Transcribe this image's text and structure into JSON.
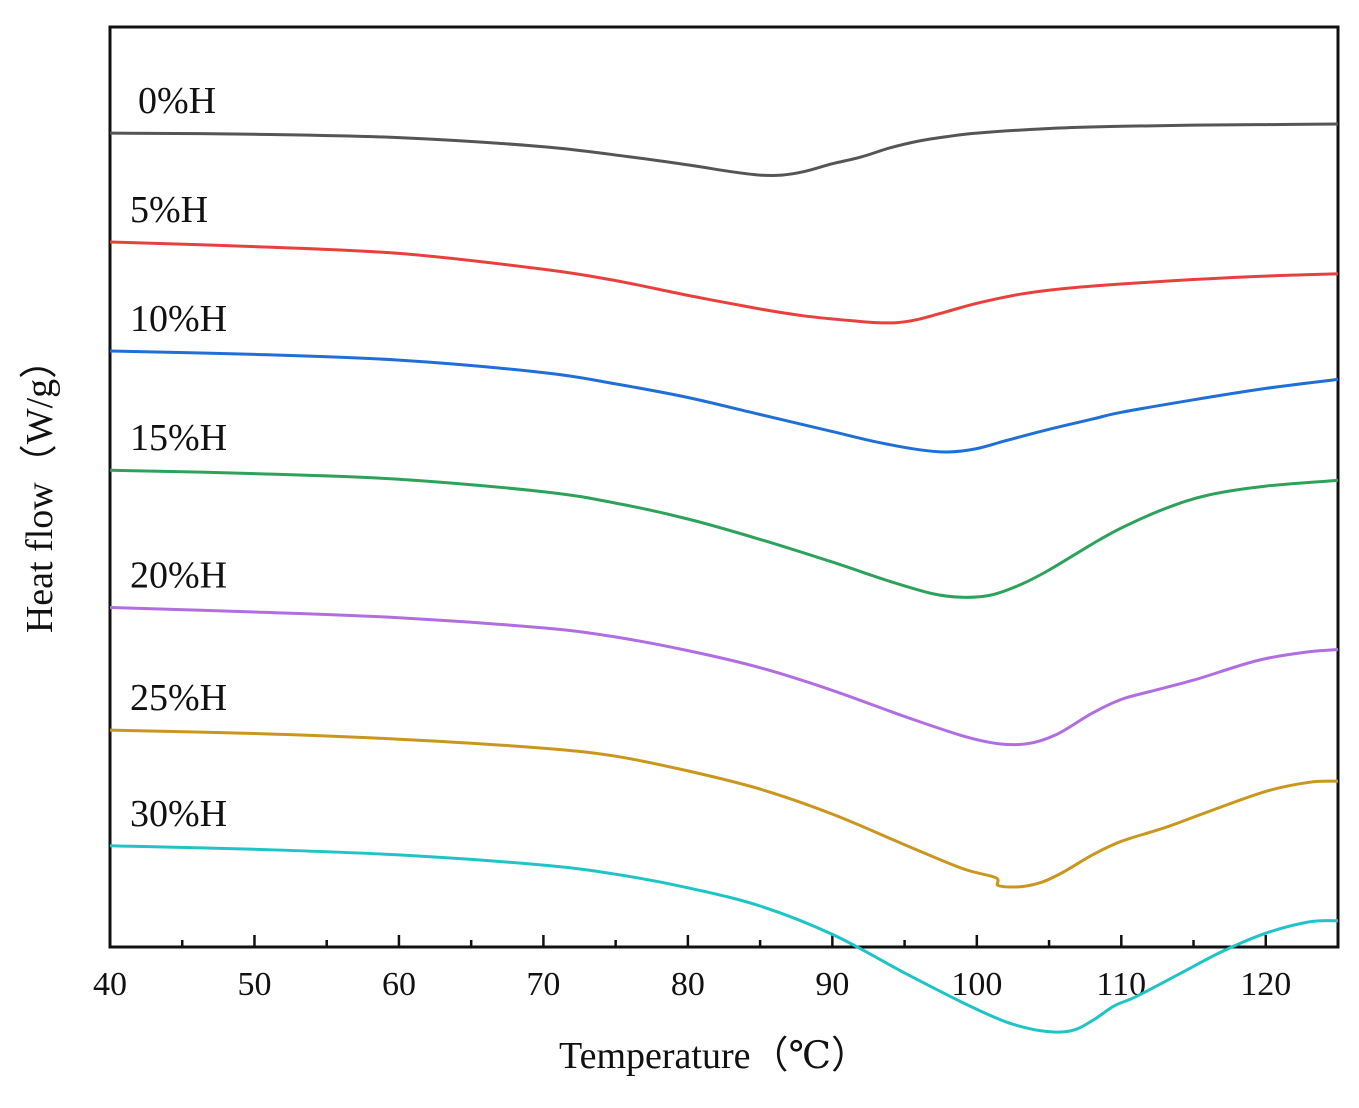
{
  "chart_data": {
    "type": "line",
    "xlabel": "Temperature（℃）",
    "ylabel": "Heat flow（W/g）",
    "xlim": [
      40,
      125
    ],
    "x_ticks": [
      40,
      50,
      60,
      70,
      80,
      90,
      100,
      110,
      120
    ],
    "y_ticks": [],
    "grid": false,
    "y_units": "relative (curves vertically offset, no y tick labels)",
    "series": [
      {
        "name": "0%H",
        "color": "#555555",
        "points": [
          [
            40,
            0.82
          ],
          [
            50,
            0.83
          ],
          [
            60,
            0.86
          ],
          [
            70,
            0.94
          ],
          [
            76,
            1.03
          ],
          [
            80,
            1.1
          ],
          [
            83,
            1.16
          ],
          [
            85,
            1.19
          ],
          [
            86.5,
            1.19
          ],
          [
            88,
            1.16
          ],
          [
            90,
            1.09
          ],
          [
            92,
            1.03
          ],
          [
            94,
            0.95
          ],
          [
            96,
            0.89
          ],
          [
            98,
            0.85
          ],
          [
            100,
            0.82
          ],
          [
            105,
            0.78
          ],
          [
            110,
            0.76
          ],
          [
            115,
            0.75
          ],
          [
            120,
            0.745
          ],
          [
            125,
            0.74
          ]
        ]
      },
      {
        "name": "5%H",
        "color": "#e8413d",
        "points": [
          [
            40,
            1.78
          ],
          [
            50,
            1.82
          ],
          [
            60,
            1.88
          ],
          [
            70,
            2.02
          ],
          [
            75,
            2.12
          ],
          [
            80,
            2.25
          ],
          [
            85,
            2.37
          ],
          [
            88,
            2.43
          ],
          [
            91,
            2.47
          ],
          [
            93,
            2.49
          ],
          [
            94.5,
            2.49
          ],
          [
            96,
            2.46
          ],
          [
            98,
            2.39
          ],
          [
            100,
            2.32
          ],
          [
            103,
            2.24
          ],
          [
            106,
            2.19
          ],
          [
            110,
            2.15
          ],
          [
            115,
            2.11
          ],
          [
            120,
            2.08
          ],
          [
            125,
            2.06
          ]
        ]
      },
      {
        "name": "10%H",
        "color": "#1f6fd6",
        "points": [
          [
            40,
            2.74
          ],
          [
            50,
            2.77
          ],
          [
            60,
            2.82
          ],
          [
            70,
            2.93
          ],
          [
            75,
            3.03
          ],
          [
            80,
            3.15
          ],
          [
            85,
            3.3
          ],
          [
            90,
            3.45
          ],
          [
            93,
            3.54
          ],
          [
            96,
            3.61
          ],
          [
            98,
            3.63
          ],
          [
            100,
            3.6
          ],
          [
            102,
            3.53
          ],
          [
            105,
            3.43
          ],
          [
            108,
            3.34
          ],
          [
            110,
            3.28
          ],
          [
            115,
            3.17
          ],
          [
            120,
            3.07
          ],
          [
            125,
            2.99
          ]
        ]
      },
      {
        "name": "15%H",
        "color": "#2ea25a",
        "points": [
          [
            40,
            3.79
          ],
          [
            50,
            3.82
          ],
          [
            60,
            3.87
          ],
          [
            70,
            3.98
          ],
          [
            75,
            4.08
          ],
          [
            80,
            4.22
          ],
          [
            85,
            4.4
          ],
          [
            90,
            4.6
          ],
          [
            94,
            4.77
          ],
          [
            97,
            4.88
          ],
          [
            99,
            4.91
          ],
          [
            101,
            4.89
          ],
          [
            103,
            4.8
          ],
          [
            105,
            4.67
          ],
          [
            108,
            4.44
          ],
          [
            110,
            4.3
          ],
          [
            113,
            4.13
          ],
          [
            116,
            4.01
          ],
          [
            120,
            3.93
          ],
          [
            125,
            3.88
          ]
        ]
      },
      {
        "name": "20%H",
        "color": "#b06ee0",
        "points": [
          [
            40,
            5.0
          ],
          [
            50,
            5.04
          ],
          [
            60,
            5.09
          ],
          [
            70,
            5.18
          ],
          [
            75,
            5.26
          ],
          [
            80,
            5.38
          ],
          [
            85,
            5.53
          ],
          [
            90,
            5.73
          ],
          [
            95,
            5.96
          ],
          [
            99,
            6.13
          ],
          [
            101.5,
            6.2
          ],
          [
            103.5,
            6.2
          ],
          [
            105.5,
            6.12
          ],
          [
            108,
            5.93
          ],
          [
            110,
            5.81
          ],
          [
            112,
            5.74
          ],
          [
            115,
            5.64
          ],
          [
            118,
            5.52
          ],
          [
            120,
            5.45
          ],
          [
            123,
            5.39
          ],
          [
            125,
            5.37
          ]
        ]
      },
      {
        "name": "25%H",
        "color": "#c9961e",
        "points": [
          [
            40,
            6.08
          ],
          [
            50,
            6.11
          ],
          [
            60,
            6.16
          ],
          [
            70,
            6.24
          ],
          [
            75,
            6.31
          ],
          [
            80,
            6.44
          ],
          [
            85,
            6.6
          ],
          [
            90,
            6.82
          ],
          [
            95,
            7.09
          ],
          [
            99,
            7.3
          ],
          [
            101.3,
            7.38
          ],
          [
            101.5,
            7.45
          ],
          [
            103,
            7.46
          ],
          [
            104.5,
            7.42
          ],
          [
            106,
            7.33
          ],
          [
            108,
            7.18
          ],
          [
            110,
            7.06
          ],
          [
            113,
            6.94
          ],
          [
            116,
            6.8
          ],
          [
            120,
            6.62
          ],
          [
            123,
            6.54
          ],
          [
            125,
            6.53
          ]
        ]
      },
      {
        "name": "30%H",
        "color": "#1fc4c6",
        "points": [
          [
            40,
            7.1
          ],
          [
            50,
            7.13
          ],
          [
            60,
            7.18
          ],
          [
            70,
            7.27
          ],
          [
            75,
            7.35
          ],
          [
            80,
            7.47
          ],
          [
            85,
            7.63
          ],
          [
            90,
            7.88
          ],
          [
            95,
            8.22
          ],
          [
            99,
            8.48
          ],
          [
            102,
            8.65
          ],
          [
            104.5,
            8.73
          ],
          [
            106.5,
            8.73
          ],
          [
            108,
            8.64
          ],
          [
            109.5,
            8.51
          ],
          [
            111,
            8.43
          ],
          [
            114,
            8.23
          ],
          [
            117,
            8.03
          ],
          [
            120,
            7.87
          ],
          [
            123,
            7.77
          ],
          [
            125,
            7.76
          ]
        ]
      }
    ]
  }
}
